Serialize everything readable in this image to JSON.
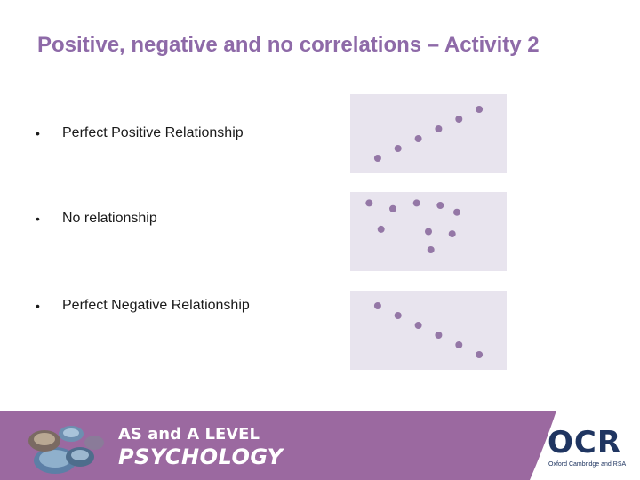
{
  "title": "Positive, negative and no correlations – Activity 2",
  "bullets": [
    "Perfect Positive Relationship",
    "No relationship",
    "Perfect Negative Relationship"
  ],
  "bullet_symbol": "•",
  "marker_color": "#9477a6",
  "panel_color": "#e8e4ee",
  "chart_data": [
    {
      "type": "scatter",
      "x": [
        1,
        2,
        3,
        4,
        5,
        6
      ],
      "y": [
        1,
        2,
        3,
        4,
        5,
        6
      ],
      "xlim": [
        0,
        7
      ],
      "ylim": [
        0,
        7
      ],
      "grid": false
    },
    {
      "type": "scatter",
      "x": [
        0.5,
        1.5,
        2.5,
        3.5,
        4.2,
        1.0,
        3.0,
        4.0,
        3.1
      ],
      "y": [
        5.5,
        5.0,
        5.5,
        5.3,
        4.7,
        3.2,
        3.0,
        2.8,
        1.4
      ],
      "xlim": [
        0,
        6
      ],
      "ylim": [
        0,
        6
      ],
      "grid": false
    },
    {
      "type": "scatter",
      "x": [
        1,
        2,
        3,
        4,
        5,
        6
      ],
      "y": [
        6,
        5,
        4,
        3,
        2,
        1
      ],
      "xlim": [
        0,
        7
      ],
      "ylim": [
        0,
        7
      ],
      "grid": false
    }
  ],
  "footer": {
    "brand_line1": "AS and A LEVEL",
    "brand_line2": "PSYCHOLOGY",
    "logo_text": "OCR",
    "logo_subtitle": "Oxford Cambridge and RSA"
  }
}
